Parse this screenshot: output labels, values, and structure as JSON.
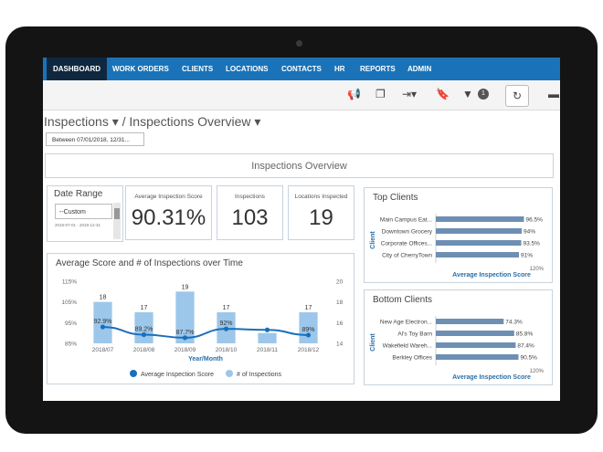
{
  "nav": {
    "items": [
      {
        "label": "DASHBOARD"
      },
      {
        "label": "WORK ORDERS"
      },
      {
        "label": "CLIENTS"
      },
      {
        "label": "LOCATIONS"
      },
      {
        "label": "CONTACTS"
      },
      {
        "label": "HR"
      },
      {
        "label": "REPORTS"
      },
      {
        "label": "ADMIN"
      }
    ]
  },
  "toolbar": {
    "icons": [
      "megaphone-icon",
      "copy-icon",
      "export-icon",
      "bookmark-icon",
      "filter-icon",
      "refresh-icon",
      "print-icon"
    ],
    "filter_count": "1"
  },
  "breadcrumb": {
    "text": "Inspections ▾  /  Inspections Overview ▾"
  },
  "filter": {
    "label": "Between 07/01/2018, 12/31..."
  },
  "overview": {
    "title": "Inspections Overview"
  },
  "date_range": {
    "title": "Date Range",
    "selected": "--Custom",
    "range": "2018-07-01 - 2018-12-31"
  },
  "kpis": [
    {
      "label": "Average Inspection Score",
      "value": "90.31%"
    },
    {
      "label": "Inspections",
      "value": "103"
    },
    {
      "label": "Locations Inspected",
      "value": "19"
    }
  ],
  "colors": {
    "nav": "#1a73b8",
    "nav_active": "#0f2840",
    "bar_light": "#9cc7ea",
    "line_dark": "#1a6fbb",
    "client_bar": "#6e8fb4"
  },
  "chart_data": [
    {
      "type": "bar",
      "title": "Average Score and # of Inspections over Time",
      "xlabel": "Year/Month",
      "categories": [
        "2018/07",
        "2018/08",
        "2018/09",
        "2018/10",
        "2018/11",
        "2018/12"
      ],
      "ylim_left": [
        85,
        115
      ],
      "yticks_left": [
        "85%",
        "95%",
        "105%",
        "115%"
      ],
      "ylim_right": [
        14,
        20
      ],
      "yticks_right": [
        "14",
        "16",
        "18",
        "20"
      ],
      "series": [
        {
          "name": "# of Inspections",
          "kind": "bar",
          "values": [
            18,
            17,
            19,
            17,
            15,
            17
          ],
          "labels": [
            "18",
            "17",
            "19",
            "17",
            "",
            "17"
          ],
          "color": "#9cc7ea"
        },
        {
          "name": "Average Inspection Score",
          "kind": "line",
          "values": [
            92.9,
            89.2,
            87.7,
            92,
            91.5,
            89
          ],
          "labels": [
            "92.9%",
            "89.2%",
            "87.7%",
            "92%",
            "",
            "89%"
          ],
          "color": "#1a6fbb"
        }
      ],
      "legend": "bottom"
    },
    {
      "type": "bar",
      "orientation": "horizontal",
      "title": "Top Clients",
      "xlabel": "Average Inspection Score",
      "ylabel": "Client",
      "categories": [
        "Main Campus Eat...",
        "Downtown Grocery",
        "Corporate Offices...",
        "City of CherryTown"
      ],
      "values": [
        96.5,
        94,
        93.5,
        91
      ],
      "labels": [
        "96.5%",
        "94%",
        "93.5%",
        "91%"
      ],
      "xlim": [
        0,
        120
      ],
      "xtick_end": "120%"
    },
    {
      "type": "bar",
      "orientation": "horizontal",
      "title": "Bottom Clients",
      "xlabel": "Average Inspection Score",
      "ylabel": "Client",
      "categories": [
        "New Age Electron...",
        "Al's Toy Barn",
        "Wakefield Wareh...",
        "Berkley Offices"
      ],
      "values": [
        74.3,
        85.8,
        87.4,
        90.5
      ],
      "labels": [
        "74.3%",
        "85.8%",
        "87.4%",
        "90.5%"
      ],
      "xlim": [
        0,
        120
      ],
      "xtick_end": "120%"
    }
  ]
}
